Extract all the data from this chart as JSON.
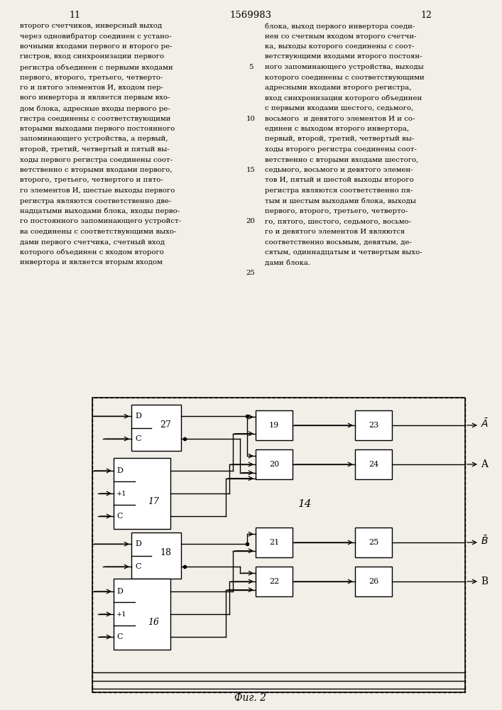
{
  "bg_color": "#f2efe8",
  "page_left": "11",
  "page_center": "1569983",
  "page_right": "12",
  "fig_caption": "Фиг. 2",
  "text_left_lines": [
    "второго счетчиков, инверсный выход",
    "через одновибратор соединен с устано-",
    "вочными входами первого и второго ре-",
    "гистров, вход синхронизации первого",
    "регистра объединен с первыми входами",
    "первого, второго, третьего, четверто-",
    "го и пятого элементов И, входом пер-",
    "вого инвертора и является первым вхо-",
    "дом блока, адресные входы первого ре-",
    "гистра соединены с соответствующими",
    "вторыми выходами первого постоянного",
    "запоминающего устройства, а первый,",
    "второй, третий, четвертый и пятый вы-",
    "ходы первого регистра соединены соот-",
    "ветственно с вторыми входами первого,",
    "второго, третьего, четвертого и пято-",
    "го элементов И, шестые выходы первого",
    "регистра являются соответственно две-",
    "надцатыми выходами блока, входы перво-",
    "го постоянного запоминающего устройст-",
    "ва соединены с соответствующими выхо-",
    "дами первого счетчика, счетный вход",
    "которого объединен с входом второго",
    "инвертора и является вторым входом"
  ],
  "text_right_lines": [
    "блока, выход первого инвертора соеди-",
    "нен со счетным входом второго счетчи-",
    "ка, выходы которого соединены с соот-",
    "ветствующими входами второго постоян-",
    "ного запоминающего устройства, выходы",
    "которого соединены с соответствующими",
    "адресными входами второго регистра,",
    "вход синхронизации которого объединен",
    "с первыми входами шестого, седьмого,",
    "восьмого  и девятого элементов И и со-",
    "единен с выходом второго инвертора,",
    "первый, второй, третий, четвертый вы-",
    "ходы второго регистра соединены соот-",
    "ветственно с вторыми входами шестого,",
    "седьмого, восьмого и девятого элемен-",
    "тов И, пятый и шестой выходы второго",
    "регистра являются соответственно пя-",
    "тым и шестым выходами блока, выходы",
    "первого, второго, третьего, четверто-",
    "го, пятого, шестого, седьмого, восьмо-",
    "го и девятого элементов И являются",
    "соответственно восьмым, девятым, де-",
    "сятым, одиннадцатым и четвертым выхо-",
    "дами блока."
  ],
  "line_numbers": [
    5,
    10,
    15,
    20,
    25
  ]
}
